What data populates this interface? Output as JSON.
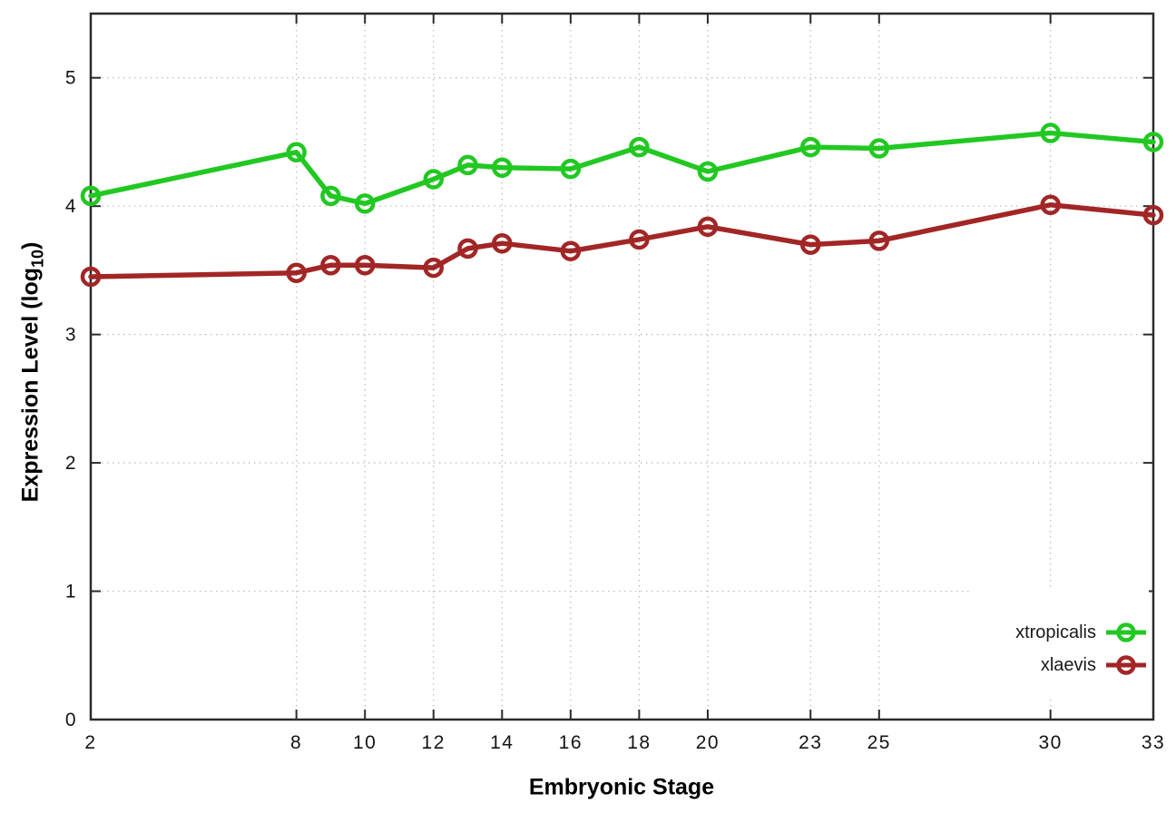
{
  "labels": {
    "xlabel": "Embryonic Stage",
    "ylabel_main": "Expression Level (log",
    "ylabel_sub": "10",
    "ylabel_close": ")"
  },
  "colors": {
    "axis": "#2b2b2b",
    "grid": "#b8b8b8",
    "tick_text": "#141414",
    "xtropicalis": "#22c822",
    "xlaevis": "#a22626"
  },
  "chart_data": {
    "type": "line",
    "title": "",
    "xlabel": "Embryonic Stage",
    "ylabel": "Expression Level (log10)",
    "x": [
      2,
      8,
      9,
      10,
      12,
      13,
      14,
      16,
      18,
      20,
      23,
      25,
      30,
      33
    ],
    "series": [
      {
        "name": "xtropicalis",
        "color": "#22c822",
        "marker": "open-circle",
        "values": [
          4.08,
          4.42,
          4.08,
          4.02,
          4.21,
          4.32,
          4.3,
          4.29,
          4.46,
          4.27,
          4.46,
          4.45,
          4.57,
          4.5
        ]
      },
      {
        "name": "xlaevis",
        "color": "#a22626",
        "marker": "open-circle",
        "values": [
          3.45,
          3.48,
          3.54,
          3.54,
          3.52,
          3.67,
          3.71,
          3.65,
          3.74,
          3.84,
          3.7,
          3.73,
          4.01,
          3.93
        ]
      }
    ],
    "xticks": [
      2,
      8,
      10,
      12,
      14,
      16,
      18,
      20,
      23,
      25,
      30,
      33
    ],
    "yticks": [
      0,
      1,
      2,
      3,
      4,
      5
    ],
    "xlim": [
      2,
      33
    ],
    "ylim": [
      0,
      5.5
    ],
    "grid": true,
    "legend": {
      "position": "inside-bottom-right",
      "entries": [
        "xtropicalis",
        "xlaevis"
      ]
    }
  }
}
